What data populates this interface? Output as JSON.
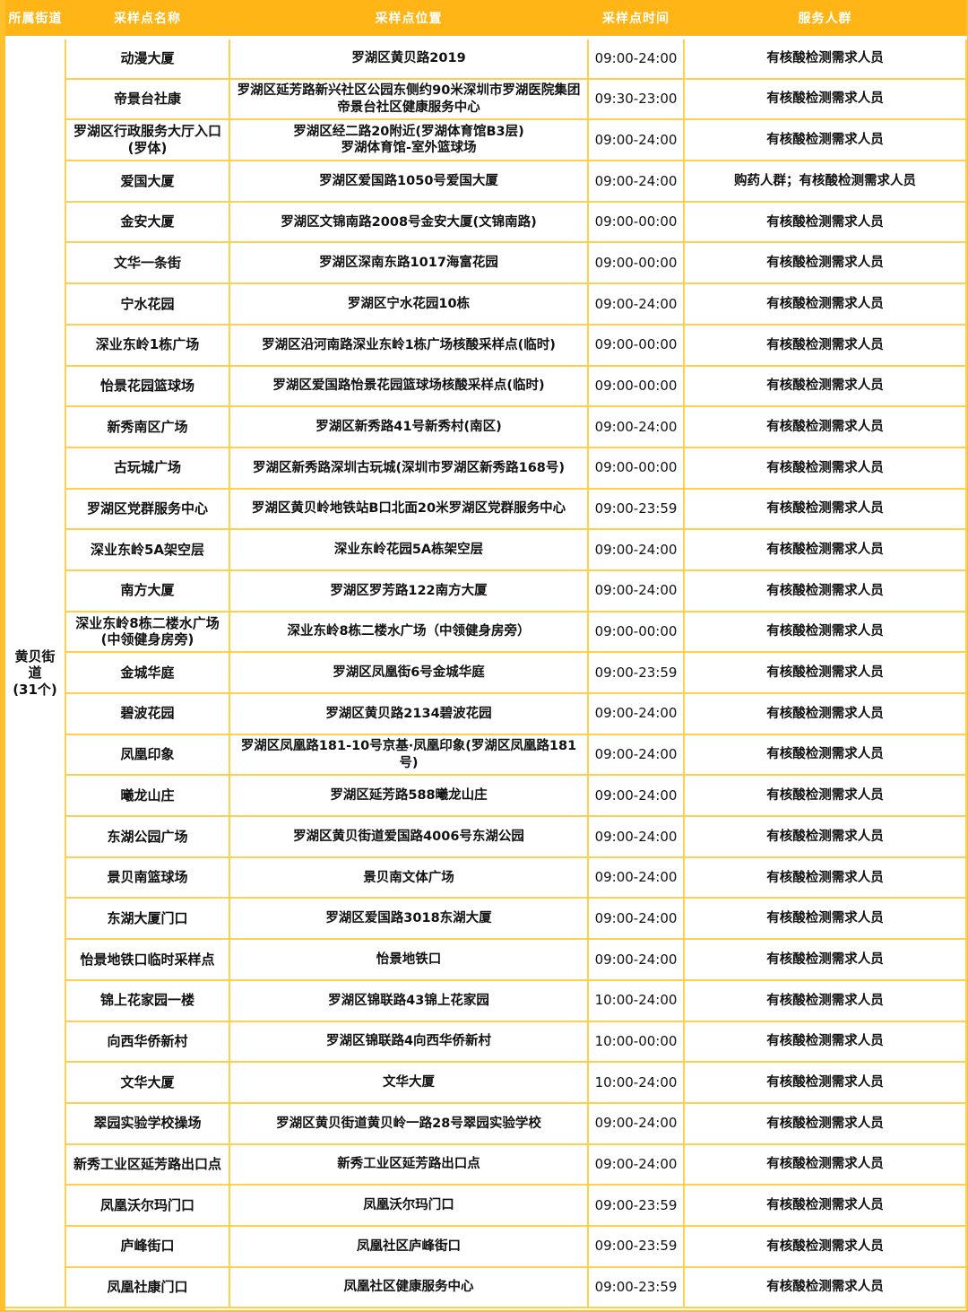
{
  "colors": {
    "header_bg": "#FFB515",
    "grid_line": "#FFCF4D",
    "outer_border": "#FFC12B",
    "header_text": "#FFFFFF",
    "body_text": "#111111"
  },
  "header": {
    "columns": [
      "所属街道",
      "采样点名称",
      "采样点位置",
      "采样点时间",
      "服务人群"
    ]
  },
  "street": {
    "label": "黄贝街道\n(31个)"
  },
  "rows": [
    {
      "name": "动漫大厦",
      "location": "罗湖区黄贝路2019",
      "time": "09:00-24:00",
      "service": "有核酸检测需求人员"
    },
    {
      "name": "帝景台社康",
      "location": "罗湖区延芳路新兴社区公园东侧约90米深圳市罗湖医院集团\n帝景台社区健康服务中心",
      "time": "09:30-23:00",
      "service": "有核酸检测需求人员"
    },
    {
      "name": "罗湖区行政服务大厅入口\n(罗体)",
      "location": "罗湖区经二路20附近(罗湖体育馆B3层)\n罗湖体育馆-室外篮球场",
      "time": "09:00-24:00",
      "service": "有核酸检测需求人员"
    },
    {
      "name": "爱国大厦",
      "location": "罗湖区爱国路1050号爱国大厦",
      "time": "09:00-24:00",
      "service": "购药人群；有核酸检测需求人员"
    },
    {
      "name": "金安大厦",
      "location": "罗湖区文锦南路2008号金安大厦(文锦南路)",
      "time": "09:00-00:00",
      "service": "有核酸检测需求人员"
    },
    {
      "name": "文华一条街",
      "location": "罗湖区深南东路1017海富花园",
      "time": "09:00-00:00",
      "service": "有核酸检测需求人员"
    },
    {
      "name": "宁水花园",
      "location": "罗湖区宁水花园10栋",
      "time": "09:00-24:00",
      "service": "有核酸检测需求人员"
    },
    {
      "name": "深业东岭1栋广场",
      "location": "罗湖区沿河南路深业东岭1栋广场核酸采样点(临时)",
      "time": "09:00-00:00",
      "service": "有核酸检测需求人员"
    },
    {
      "name": "怡景花园篮球场",
      "location": "罗湖区爱国路怡景花园篮球场核酸采样点(临时)",
      "time": "09:00-00:00",
      "service": "有核酸检测需求人员"
    },
    {
      "name": "新秀南区广场",
      "location": "罗湖区新秀路41号新秀村(南区)",
      "time": "09:00-24:00",
      "service": "有核酸检测需求人员"
    },
    {
      "name": "古玩城广场",
      "location": "罗湖区新秀路深圳古玩城(深圳市罗湖区新秀路168号)",
      "time": "09:00-00:00",
      "service": "有核酸检测需求人员"
    },
    {
      "name": "罗湖区党群服务中心",
      "location": "罗湖区黄贝岭地铁站B口北面20米罗湖区党群服务中心",
      "time": "09:00-23:59",
      "service": "有核酸检测需求人员"
    },
    {
      "name": "深业东岭5A架空层",
      "location": "深业东岭花园5A栋架空层",
      "time": "09:00-24:00",
      "service": "有核酸检测需求人员"
    },
    {
      "name": "南方大厦",
      "location": "罗湖区罗芳路122南方大厦",
      "time": "09:00-24:00",
      "service": "有核酸检测需求人员"
    },
    {
      "name": "深业东岭8栋二楼水广场\n(中领健身房旁)",
      "location": "深业东岭8栋二楼水广场（中领健身房旁）",
      "time": "09:00-00:00",
      "service": "有核酸检测需求人员"
    },
    {
      "name": "金城华庭",
      "location": "罗湖区凤凰街6号金城华庭",
      "time": "09:00-23:59",
      "service": "有核酸检测需求人员"
    },
    {
      "name": "碧波花园",
      "location": "罗湖区黄贝路2134碧波花园",
      "time": "09:00-24:00",
      "service": "有核酸检测需求人员"
    },
    {
      "name": "凤凰印象",
      "location": "罗湖区凤凰路181-10号京基·凤凰印象(罗湖区凤凰路181号)",
      "time": "09:00-24:00",
      "service": "有核酸检测需求人员"
    },
    {
      "name": "曦龙山庄",
      "location": "罗湖区延芳路588曦龙山庄",
      "time": "09:00-24:00",
      "service": "有核酸检测需求人员"
    },
    {
      "name": "东湖公园广场",
      "location": "罗湖区黄贝街道爱国路4006号东湖公园",
      "time": "09:00-24:00",
      "service": "有核酸检测需求人员"
    },
    {
      "name": "景贝南篮球场",
      "location": "景贝南文体广场",
      "time": "09:00-24:00",
      "service": "有核酸检测需求人员"
    },
    {
      "name": "东湖大厦门口",
      "location": "罗湖区爱国路3018东湖大厦",
      "time": "09:00-24:00",
      "service": "有核酸检测需求人员"
    },
    {
      "name": "怡景地铁口临时采样点",
      "location": "怡景地铁口",
      "time": "09:00-24:00",
      "service": "有核酸检测需求人员"
    },
    {
      "name": "锦上花家园一楼",
      "location": "罗湖区锦联路43锦上花家园",
      "time": "10:00-24:00",
      "service": "有核酸检测需求人员"
    },
    {
      "name": "向西华侨新村",
      "location": "罗湖区锦联路4向西华侨新村",
      "time": "10:00-00:00",
      "service": "有核酸检测需求人员"
    },
    {
      "name": "文华大厦",
      "location": "文华大厦",
      "time": "10:00-24:00",
      "service": "有核酸检测需求人员"
    },
    {
      "name": "翠园实验学校操场",
      "location": "罗湖区黄贝街道黄贝岭一路28号翠园实验学校",
      "time": "09:00-24:00",
      "service": "有核酸检测需求人员"
    },
    {
      "name": "新秀工业区延芳路出口点",
      "location": "新秀工业区延芳路出口点",
      "time": "09:00-24:00",
      "service": "有核酸检测需求人员"
    },
    {
      "name": "凤凰沃尔玛门口",
      "location": "凤凰沃尔玛门口",
      "time": "09:00-23:59",
      "service": "有核酸检测需求人员"
    },
    {
      "name": "庐峰街口",
      "location": "凤凰社区庐峰街口",
      "time": "09:00-23:59",
      "service": "有核酸检测需求人员"
    },
    {
      "name": "凤凰社康门口",
      "location": "凤凰社区健康服务中心",
      "time": "09:00-23:59",
      "service": "有核酸检测需求人员"
    }
  ]
}
